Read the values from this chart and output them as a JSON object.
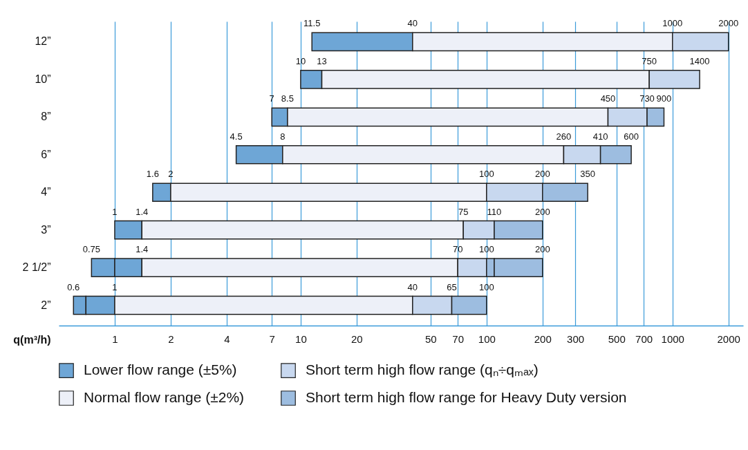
{
  "chart_data": {
    "type": "bar",
    "orientation": "horizontal",
    "log": "x",
    "grid": "x",
    "legend": "bottom",
    "xlabel": "q(m³/h)",
    "categories": [
      "12”",
      "10”",
      "8”",
      "6”",
      "4”",
      "3”",
      "2 1/2”",
      "2”"
    ],
    "series": [
      {
        "name": "Lower flow range (±5%)",
        "color": "#6ea6d6",
        "base": [
          11.5,
          10,
          7,
          4.5,
          1.6,
          1,
          0.75,
          0.6
        ],
        "values": [
          28.5,
          3,
          1.5,
          3.5,
          0.4,
          0.4,
          0.25,
          0.1
        ]
      },
      {
        "color": "#6ea6d6",
        "base": [
          null,
          null,
          null,
          null,
          null,
          null,
          1,
          0.7
        ],
        "values": [
          null,
          null,
          null,
          null,
          null,
          null,
          0.4,
          0.3
        ]
      },
      {
        "name": "Normal flow range (±2%)",
        "color": "#edf0f8",
        "base": [
          40,
          13,
          8.5,
          8,
          2,
          1.4,
          1.4,
          1
        ],
        "values": [
          960,
          737,
          441.5,
          252,
          98,
          73.6,
          68.6,
          39
        ]
      },
      {
        "name": "Short term high flow range (qₙ÷qₘₐₓ)",
        "color": "#c8d8ef",
        "base": [
          1000,
          750,
          450,
          260,
          100,
          75,
          70,
          40
        ],
        "values": [
          1000,
          650,
          280,
          150,
          100,
          35,
          30,
          25
        ]
      },
      {
        "name": "Short term high flow range for Heavy Duty version",
        "color": "#9dbde0",
        "base": [
          null,
          null,
          730,
          410,
          200,
          110,
          100,
          65
        ],
        "values": [
          null,
          null,
          170,
          190,
          150,
          90,
          10,
          35
        ]
      },
      {
        "color": "#9dbde0",
        "base": [
          null,
          null,
          null,
          null,
          null,
          null,
          110,
          null
        ],
        "values": [
          null,
          null,
          null,
          null,
          null,
          null,
          90,
          null
        ]
      }
    ],
    "xlim": [
      0.5,
      2400
    ],
    "xticks": [
      1,
      2,
      4,
      7,
      10,
      20,
      50,
      70,
      100,
      200,
      300,
      500,
      700,
      1000,
      2000
    ],
    "annotations": [
      {
        "text": "11.5",
        "x": 11.5,
        "y": "12”"
      },
      {
        "text": "40",
        "x": 40,
        "y": "12”"
      },
      {
        "text": "1000",
        "x": 1000,
        "y": "12”"
      },
      {
        "text": "2000",
        "x": 2000,
        "y": "12”"
      },
      {
        "text": "10",
        "x": 10,
        "y": "10”"
      },
      {
        "text": "13",
        "x": 13,
        "y": "10”"
      },
      {
        "text": "750",
        "x": 750,
        "y": "10”"
      },
      {
        "text": "1400",
        "x": 1400,
        "y": "10”"
      },
      {
        "text": "7",
        "x": 7,
        "y": "8”"
      },
      {
        "text": "8.5",
        "x": 8.5,
        "y": "8”"
      },
      {
        "text": "450",
        "x": 450,
        "y": "8”"
      },
      {
        "text": "730",
        "x": 730,
        "y": "8”"
      },
      {
        "text": "900",
        "x": 900,
        "y": "8”"
      },
      {
        "text": "4.5",
        "x": 4.5,
        "y": "6”"
      },
      {
        "text": "8",
        "x": 8,
        "y": "6”"
      },
      {
        "text": "260",
        "x": 260,
        "y": "6”"
      },
      {
        "text": "410",
        "x": 410,
        "y": "6”"
      },
      {
        "text": "600",
        "x": 600,
        "y": "6”"
      },
      {
        "text": "1.6",
        "x": 1.6,
        "y": "4”"
      },
      {
        "text": "2",
        "x": 2,
        "y": "4”"
      },
      {
        "text": "100",
        "x": 100,
        "y": "4”"
      },
      {
        "text": "200",
        "x": 200,
        "y": "4”"
      },
      {
        "text": "350",
        "x": 350,
        "y": "4”"
      },
      {
        "text": "1",
        "x": 1,
        "y": "3”"
      },
      {
        "text": "1.4",
        "x": 1.4,
        "y": "3”"
      },
      {
        "text": "75",
        "x": 75,
        "y": "3”"
      },
      {
        "text": "110",
        "x": 110,
        "y": "3”"
      },
      {
        "text": "200",
        "x": 200,
        "y": "3”"
      },
      {
        "text": "0.75",
        "x": 0.75,
        "y": "2 1/2”"
      },
      {
        "text": "1.4",
        "x": 1.4,
        "y": "2 1/2”"
      },
      {
        "text": "70",
        "x": 70,
        "y": "2 1/2”"
      },
      {
        "text": "100",
        "x": 100,
        "y": "2 1/2”"
      },
      {
        "text": "200",
        "x": 200,
        "y": "2 1/2”"
      },
      {
        "text": "0.6",
        "x": 0.6,
        "y": "2”"
      },
      {
        "text": "1",
        "x": 1,
        "y": "2”"
      },
      {
        "text": "40",
        "x": 40,
        "y": "2”"
      },
      {
        "text": "65",
        "x": 65,
        "y": "2”"
      },
      {
        "text": "100",
        "x": 100,
        "y": "2”"
      }
    ]
  }
}
